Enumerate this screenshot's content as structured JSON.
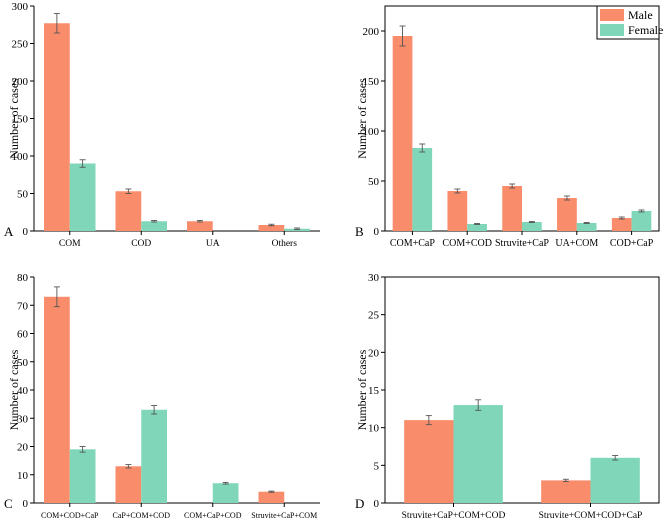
{
  "legend": {
    "male_label": "Male",
    "female_label": "Female"
  },
  "colors": {
    "male": "#f98c6b",
    "female": "#7fd6b8"
  },
  "chart_data": [
    {
      "panel": "A",
      "type": "bar",
      "ylabel": "Number of cases",
      "ylim": [
        0,
        300
      ],
      "yticks": [
        0,
        50,
        100,
        150,
        200,
        250,
        300
      ],
      "categories": [
        "COM",
        "COD",
        "UA",
        "Others"
      ],
      "series": [
        {
          "name": "Male",
          "values": [
            277,
            53,
            13,
            8
          ],
          "errors": [
            13,
            3,
            1,
            1
          ]
        },
        {
          "name": "Female",
          "values": [
            90,
            13,
            0,
            3
          ],
          "errors": [
            5,
            1,
            0,
            1
          ]
        }
      ]
    },
    {
      "panel": "B",
      "type": "bar",
      "ylabel": "Number of cases",
      "ylim": [
        0,
        225
      ],
      "yticks": [
        0,
        50,
        100,
        150,
        200
      ],
      "categories": [
        "COM+CaP",
        "COM+COD",
        "Struvite+CaP",
        "UA+COM",
        "COD+CaP"
      ],
      "legend": "top-right",
      "series": [
        {
          "name": "Male",
          "values": [
            195,
            40,
            45,
            33,
            13
          ],
          "errors": [
            10,
            2,
            2,
            2,
            1
          ]
        },
        {
          "name": "Female",
          "values": [
            83,
            7,
            9,
            8,
            20
          ],
          "errors": [
            4,
            0.5,
            0.5,
            0.5,
            1
          ]
        }
      ]
    },
    {
      "panel": "C",
      "type": "bar",
      "ylabel": "Number of cases",
      "ylim": [
        0,
        80
      ],
      "yticks": [
        0,
        10,
        20,
        30,
        40,
        50,
        60,
        70,
        80
      ],
      "categories": [
        "COM+COD+CaP",
        "CaP+COM+COD",
        "COM+CaP+COD",
        "Struvite+CaP+COM"
      ],
      "series": [
        {
          "name": "Male",
          "values": [
            73,
            13,
            0,
            4
          ],
          "errors": [
            3.5,
            0.6,
            0,
            0.2
          ]
        },
        {
          "name": "Female",
          "values": [
            19,
            33,
            7,
            0
          ],
          "errors": [
            1,
            1.5,
            0.3,
            0
          ]
        }
      ]
    },
    {
      "panel": "D",
      "type": "bar",
      "ylabel": "Number of cases",
      "ylim": [
        0,
        30
      ],
      "yticks": [
        0,
        5,
        10,
        15,
        20,
        25,
        30
      ],
      "categories": [
        "Struvite+CaP+COM+COD",
        "Struvite+COM+COD+CaP"
      ],
      "series": [
        {
          "name": "Male",
          "values": [
            11,
            3
          ],
          "errors": [
            0.6,
            0.15
          ]
        },
        {
          "name": "Female",
          "values": [
            13,
            6
          ],
          "errors": [
            0.7,
            0.3
          ]
        }
      ]
    }
  ]
}
